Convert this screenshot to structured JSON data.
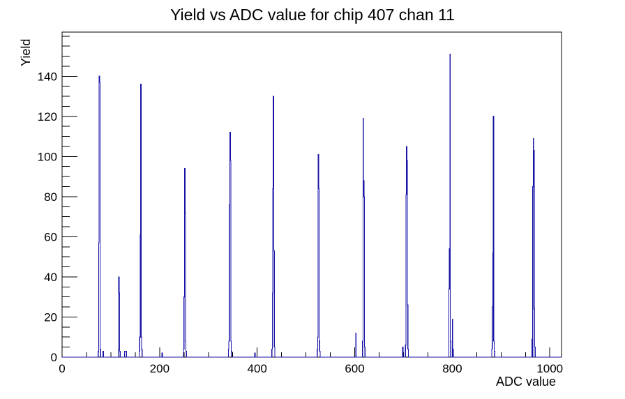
{
  "window": {
    "background": "#ffffff"
  },
  "chart_data": {
    "type": "bar",
    "title": "Yield vs ADC value for chip 407 chan 11",
    "xlabel": "ADC value",
    "ylabel": "Yield",
    "xlim": [
      0,
      1024
    ],
    "ylim": [
      0,
      162
    ],
    "x_major_ticks": [
      0,
      200,
      400,
      600,
      800,
      1000
    ],
    "x_minor_tick_step": 50,
    "y_major_ticks": [
      0,
      20,
      40,
      60,
      80,
      100,
      120,
      140
    ],
    "y_minor_tick_step": 5,
    "grid": false,
    "legend": "none",
    "line_color": "#1a14a6",
    "axis_color": "#000000",
    "bins": [
      [
        74,
        3
      ],
      [
        75,
        57
      ],
      [
        76,
        140
      ],
      [
        77,
        137
      ],
      [
        78,
        4
      ],
      [
        84,
        3
      ],
      [
        115,
        4
      ],
      [
        116,
        40
      ],
      [
        117,
        32
      ],
      [
        118,
        3
      ],
      [
        128,
        3
      ],
      [
        129,
        3
      ],
      [
        130,
        3
      ],
      [
        131,
        3
      ],
      [
        158,
        3
      ],
      [
        159,
        10
      ],
      [
        160,
        61
      ],
      [
        161,
        136
      ],
      [
        162,
        10
      ],
      [
        163,
        4
      ],
      [
        205,
        2
      ],
      [
        249,
        4
      ],
      [
        250,
        30
      ],
      [
        251,
        94
      ],
      [
        252,
        72
      ],
      [
        253,
        8
      ],
      [
        254,
        3
      ],
      [
        341,
        4
      ],
      [
        342,
        8
      ],
      [
        343,
        76
      ],
      [
        344,
        112
      ],
      [
        345,
        98
      ],
      [
        346,
        8
      ],
      [
        347,
        3
      ],
      [
        395,
        2
      ],
      [
        430,
        4
      ],
      [
        431,
        32
      ],
      [
        432,
        84
      ],
      [
        433,
        130
      ],
      [
        434,
        53
      ],
      [
        435,
        5
      ],
      [
        523,
        4
      ],
      [
        524,
        10
      ],
      [
        525,
        101
      ],
      [
        526,
        84
      ],
      [
        527,
        8
      ],
      [
        528,
        3
      ],
      [
        602,
        12
      ],
      [
        616,
        8
      ],
      [
        617,
        119
      ],
      [
        618,
        88
      ],
      [
        619,
        80
      ],
      [
        620,
        5
      ],
      [
        698,
        5
      ],
      [
        704,
        6
      ],
      [
        705,
        81
      ],
      [
        706,
        105
      ],
      [
        707,
        98
      ],
      [
        708,
        26
      ],
      [
        709,
        4
      ],
      [
        793,
        34
      ],
      [
        794,
        54
      ],
      [
        795,
        151
      ],
      [
        796,
        8
      ],
      [
        800,
        19
      ],
      [
        801,
        4
      ],
      [
        881,
        4
      ],
      [
        882,
        25
      ],
      [
        883,
        52
      ],
      [
        884,
        120
      ],
      [
        885,
        8
      ],
      [
        886,
        3
      ],
      [
        963,
        9
      ],
      [
        965,
        85
      ],
      [
        966,
        109
      ],
      [
        967,
        103
      ],
      [
        968,
        24
      ],
      [
        969,
        5
      ]
    ]
  }
}
